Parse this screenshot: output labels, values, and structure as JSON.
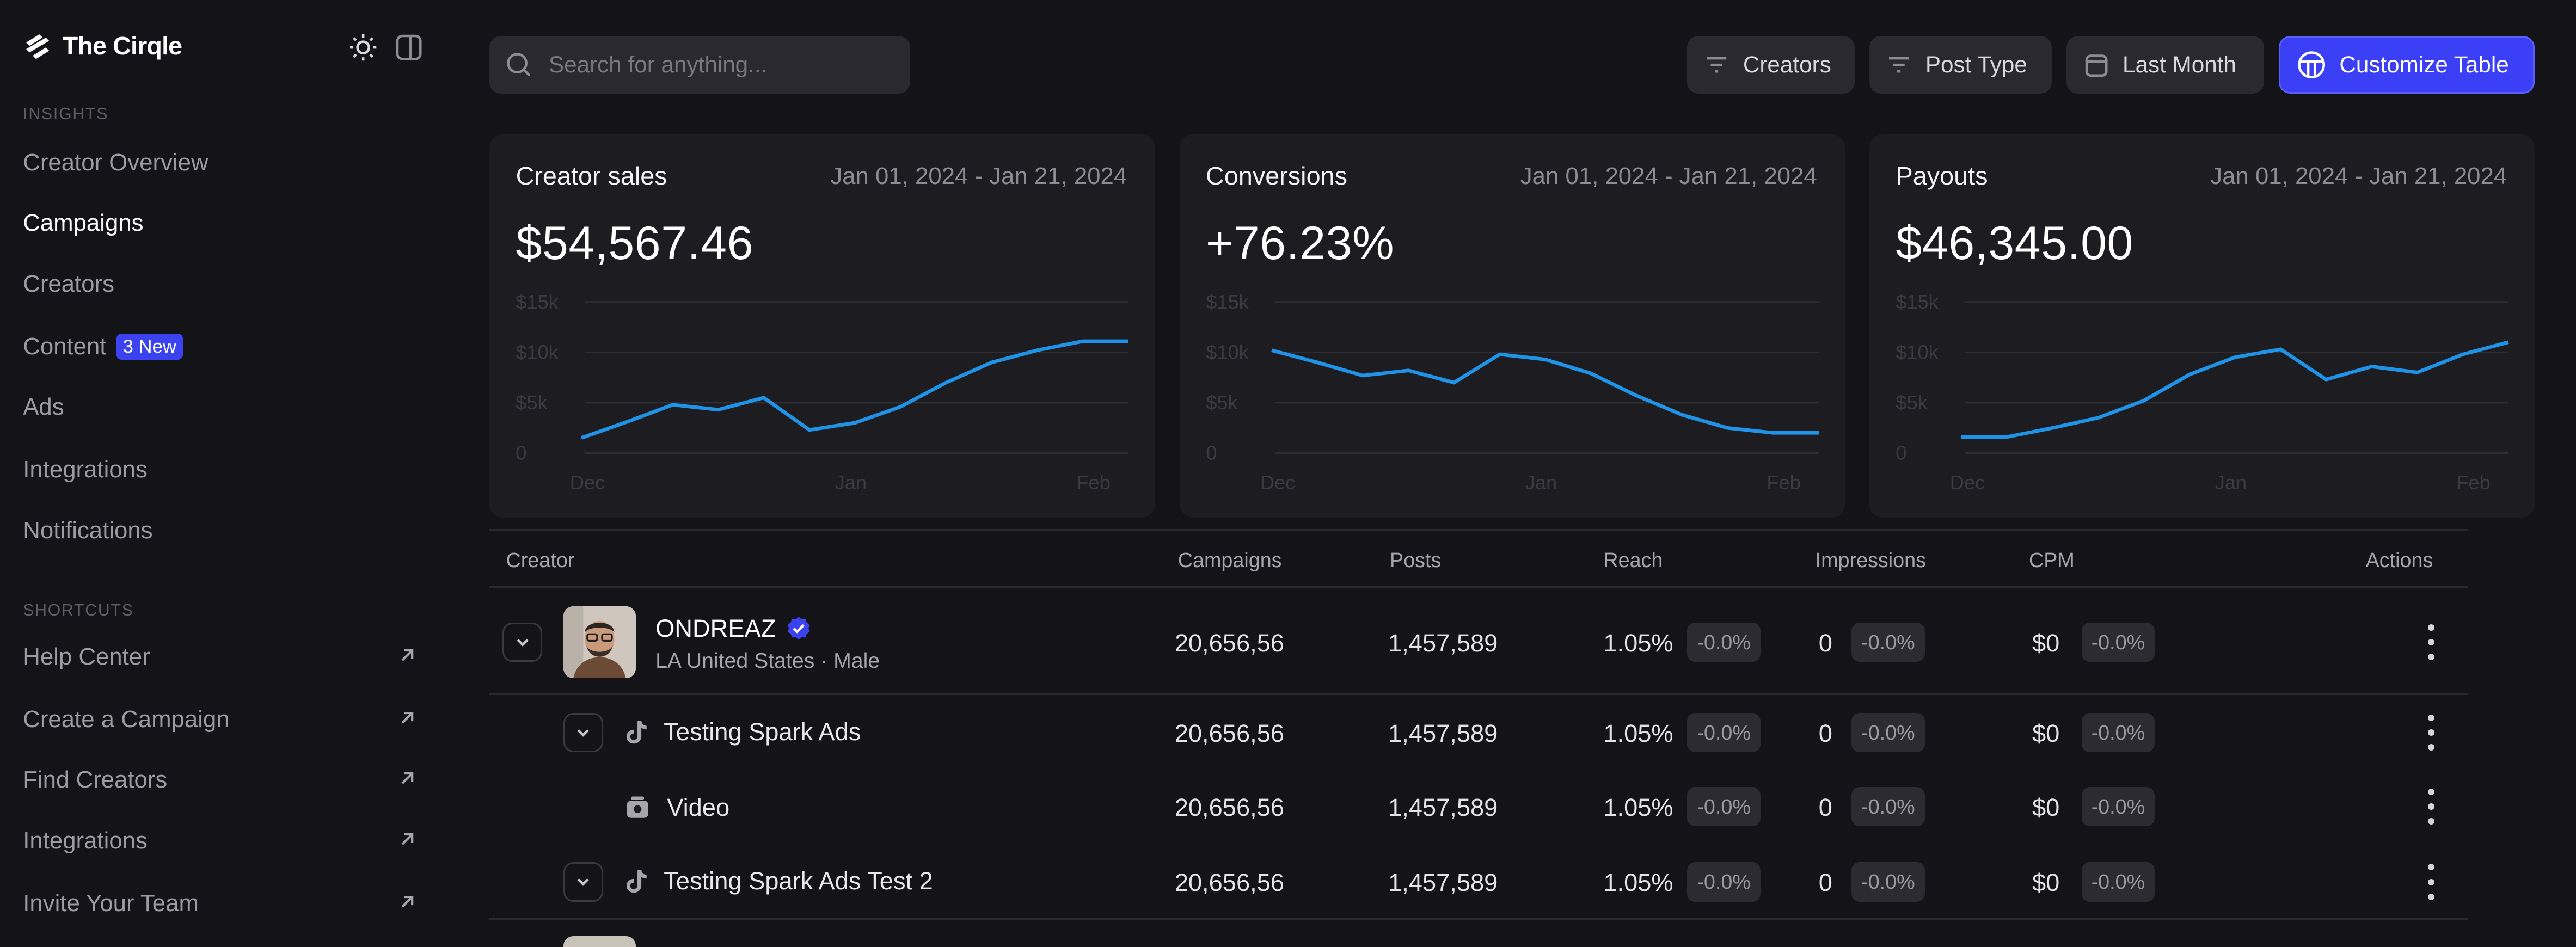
{
  "app": {
    "name": "The Cirqle"
  },
  "sidebar": {
    "insights_label": "INSIGHTS",
    "insights": [
      {
        "label": "Creator Overview"
      },
      {
        "label": "Campaigns",
        "active": true
      },
      {
        "label": "Creators"
      },
      {
        "label": "Content",
        "badge": "3 New"
      },
      {
        "label": "Ads"
      },
      {
        "label": "Integrations"
      },
      {
        "label": "Notifications"
      }
    ],
    "shortcuts_label": "SHORTCUTS",
    "shortcuts": [
      {
        "label": "Help Center"
      },
      {
        "label": "Create a Campaign"
      },
      {
        "label": "Find Creators"
      },
      {
        "label": "Integrations"
      },
      {
        "label": "Invite Your Team"
      }
    ]
  },
  "search": {
    "placeholder": "Search for anything..."
  },
  "filters": {
    "creators": "Creators",
    "post_type": "Post Type",
    "date": "Last Month"
  },
  "customize_label": "Customize Table",
  "colors": {
    "accent": "#3b3ff5",
    "line": "#1f93e8",
    "badge": "#3b43f0"
  },
  "cards": [
    {
      "title": "Creator sales",
      "range": "Jan 01, 2024 - Jan 21, 2024",
      "value": "$54,567.46"
    },
    {
      "title": "Conversions",
      "range": "Jan 01, 2024 - Jan 21, 2024",
      "value": "+76.23%"
    },
    {
      "title": "Payouts",
      "range": "Jan 01, 2024 - Jan 21, 2024",
      "value": "$46,345.00"
    }
  ],
  "chart_data": [
    {
      "type": "line",
      "yticks": [
        "$15k",
        "$10k",
        "$5k",
        "0"
      ],
      "xticks": [
        "Dec",
        "Jan",
        "Feb"
      ],
      "ylim": [
        0,
        15000
      ],
      "values": [
        1500,
        3100,
        4800,
        4300,
        5500,
        2300,
        3000,
        4600,
        7000,
        9000,
        10200,
        11100,
        11100
      ],
      "grid": true
    },
    {
      "type": "line",
      "yticks": [
        "$15k",
        "$10k",
        "$5k",
        "0"
      ],
      "xticks": [
        "Dec",
        "Jan",
        "Feb"
      ],
      "ylim": [
        0,
        15000
      ],
      "values": [
        10200,
        9000,
        7700,
        8200,
        7000,
        9800,
        9300,
        7900,
        5700,
        3800,
        2500,
        2000,
        2000
      ],
      "grid": true
    },
    {
      "type": "line",
      "yticks": [
        "$15k",
        "$10k",
        "$5k",
        "0"
      ],
      "xticks": [
        "Dec",
        "Jan",
        "Feb"
      ],
      "ylim": [
        0,
        15000
      ],
      "values": [
        1600,
        1600,
        2500,
        3500,
        5200,
        7800,
        9500,
        10300,
        7300,
        8600,
        8000,
        9800,
        11000
      ],
      "grid": true
    }
  ],
  "table": {
    "headers": {
      "creator": "Creator",
      "campaigns": "Campaigns",
      "posts": "Posts",
      "reach": "Reach",
      "impressions": "Impressions",
      "cpm": "CPM",
      "actions": "Actions"
    },
    "creator": {
      "name": "ONDREAZ",
      "meta": "LA United States  ·  Male",
      "campaigns": "20,656,56",
      "posts": "1,457,589",
      "reach": "1.05%",
      "reach_delta": "-0.0%",
      "impressions": "0",
      "impressions_delta": "-0.0%",
      "cpm": "$0",
      "cpm_delta": "-0.0%"
    },
    "rows": [
      {
        "name": "Testing Spark Ads",
        "campaigns": "20,656,56",
        "posts": "1,457,589",
        "reach": "1.05%",
        "reach_delta": "-0.0%",
        "impressions": "0",
        "impressions_delta": "-0.0%",
        "cpm": "$0",
        "cpm_delta": "-0.0%"
      },
      {
        "name": "Video",
        "campaigns": "20,656,56",
        "posts": "1,457,589",
        "reach": "1.05%",
        "reach_delta": "-0.0%",
        "impressions": "0",
        "impressions_delta": "-0.0%",
        "cpm": "$0",
        "cpm_delta": "-0.0%"
      },
      {
        "name": "Testing Spark Ads Test 2",
        "campaigns": "20,656,56",
        "posts": "1,457,589",
        "reach": "1.05%",
        "reach_delta": "-0.0%",
        "impressions": "0",
        "impressions_delta": "-0.0%",
        "cpm": "$0",
        "cpm_delta": "-0.0%"
      }
    ]
  }
}
